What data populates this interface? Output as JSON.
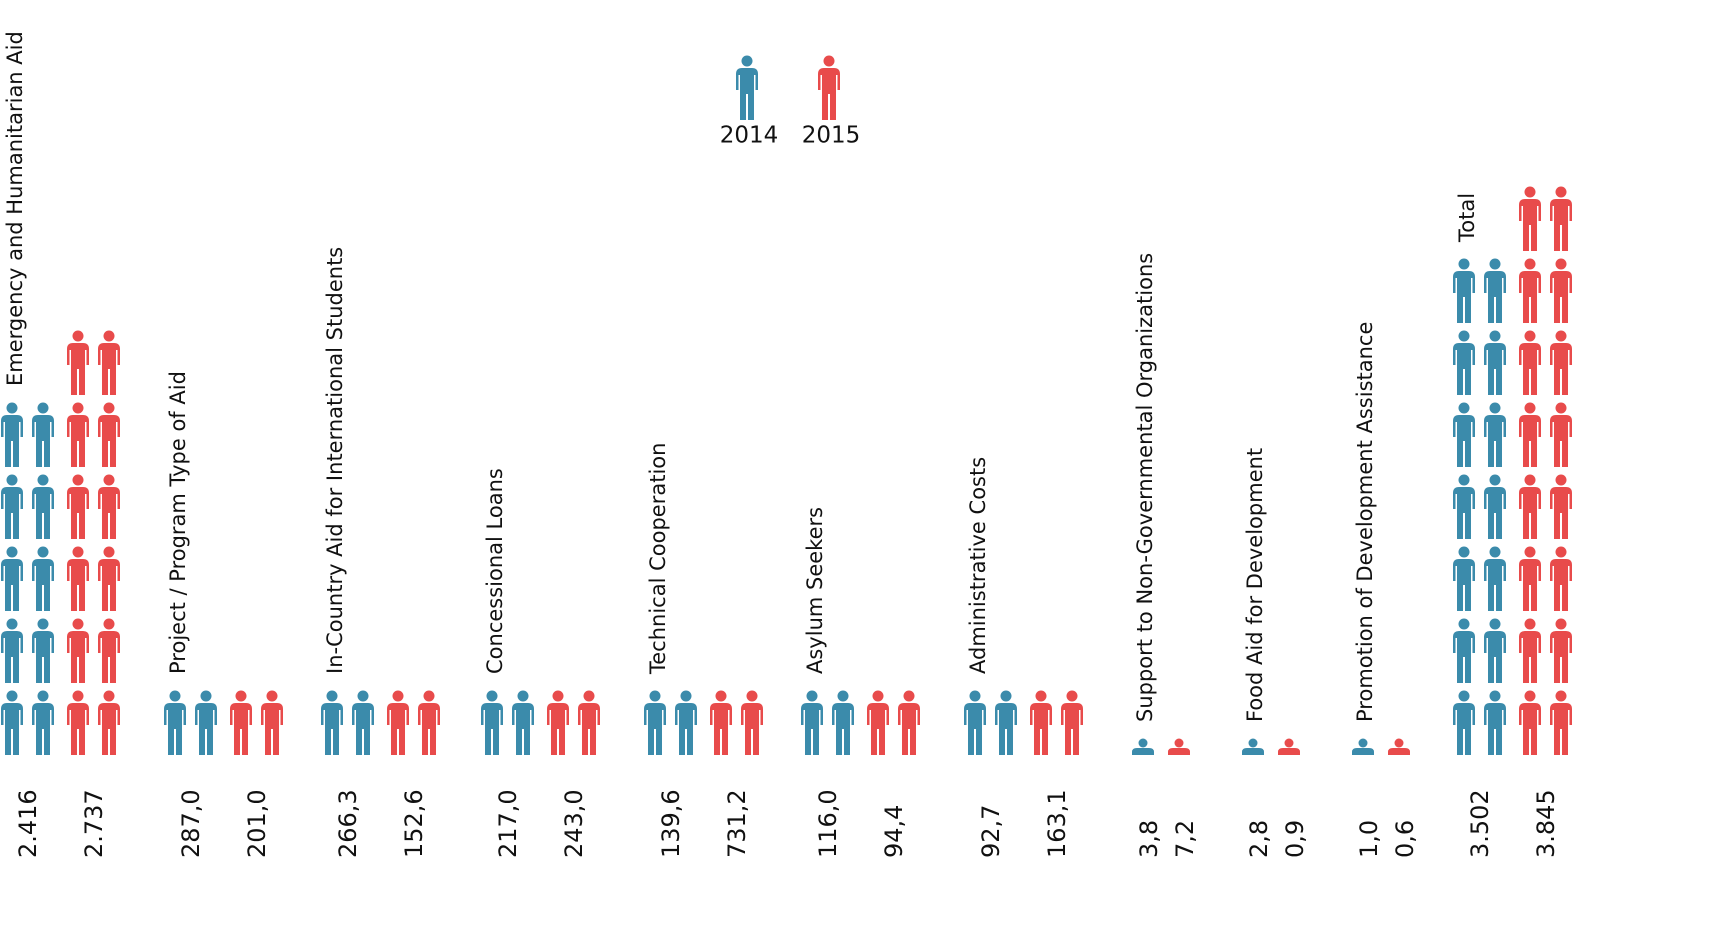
{
  "chart_data": {
    "type": "pictogram",
    "categories": [
      "Emergency and Humanitarian Aid",
      "Project / Program Type of Aid",
      "In-Country Aid for International Students",
      "Concessional Loans",
      "Technical Cooperation",
      "Asylum Seekers",
      "Administrative Costs",
      "Support to Non-Governmental Organizations",
      "Food Aid for Development",
      "Promotion of Development Assistance",
      "Total"
    ],
    "series": [
      {
        "name": "2014",
        "color": "#3b8bab",
        "values": [
          2416,
          287.0,
          266.3,
          217.0,
          139.6,
          116.0,
          92.7,
          3.8,
          2.8,
          1.0,
          3502
        ],
        "value_labels": [
          "2.416",
          "287,0",
          "266,3",
          "217,0",
          "139,6",
          "116,0",
          "92,7",
          "3,8",
          "2,8",
          "1,0",
          "3.502"
        ]
      },
      {
        "name": "2015",
        "color": "#e84b4b",
        "values": [
          2737,
          201.0,
          152.6,
          243.0,
          731.2,
          94.4,
          163.1,
          7.2,
          0.9,
          0.6,
          3845
        ],
        "value_labels": [
          "2.737",
          "201,0",
          "152,6",
          "243,0",
          "731,2",
          "94,4",
          "163,1",
          "7,2",
          "0,9",
          "0,6",
          "3.845"
        ]
      }
    ]
  }
}
